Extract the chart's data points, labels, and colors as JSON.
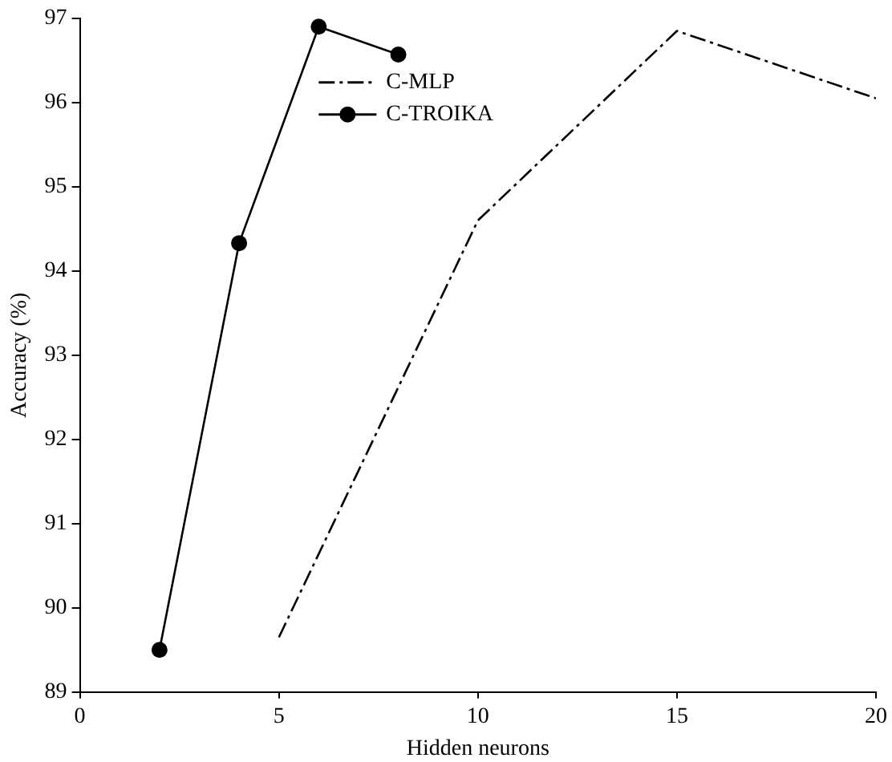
{
  "chart_data": {
    "type": "line",
    "xlabel": "Hidden neurons",
    "ylabel": "Accuracy (%)",
    "xlim": [
      0,
      20
    ],
    "xticks": [
      0,
      5,
      10,
      15,
      20
    ],
    "ylim": [
      89,
      97
    ],
    "yticks": [
      89,
      90,
      91,
      92,
      93,
      94,
      95,
      96,
      97
    ],
    "grid": false,
    "legend": "top",
    "series": [
      {
        "name": "C-MLP",
        "color": "#000000",
        "x": [
          5,
          10,
          15,
          20
        ],
        "values": [
          89.65,
          94.6,
          96.85,
          96.05
        ],
        "line_style": "dashdot",
        "marker": "none"
      },
      {
        "name": "C-TROIKA",
        "color": "#000000",
        "x": [
          2,
          4,
          6,
          8
        ],
        "values": [
          89.5,
          94.33,
          96.9,
          96.57
        ],
        "line_style": "solid",
        "marker": "circle"
      }
    ]
  }
}
